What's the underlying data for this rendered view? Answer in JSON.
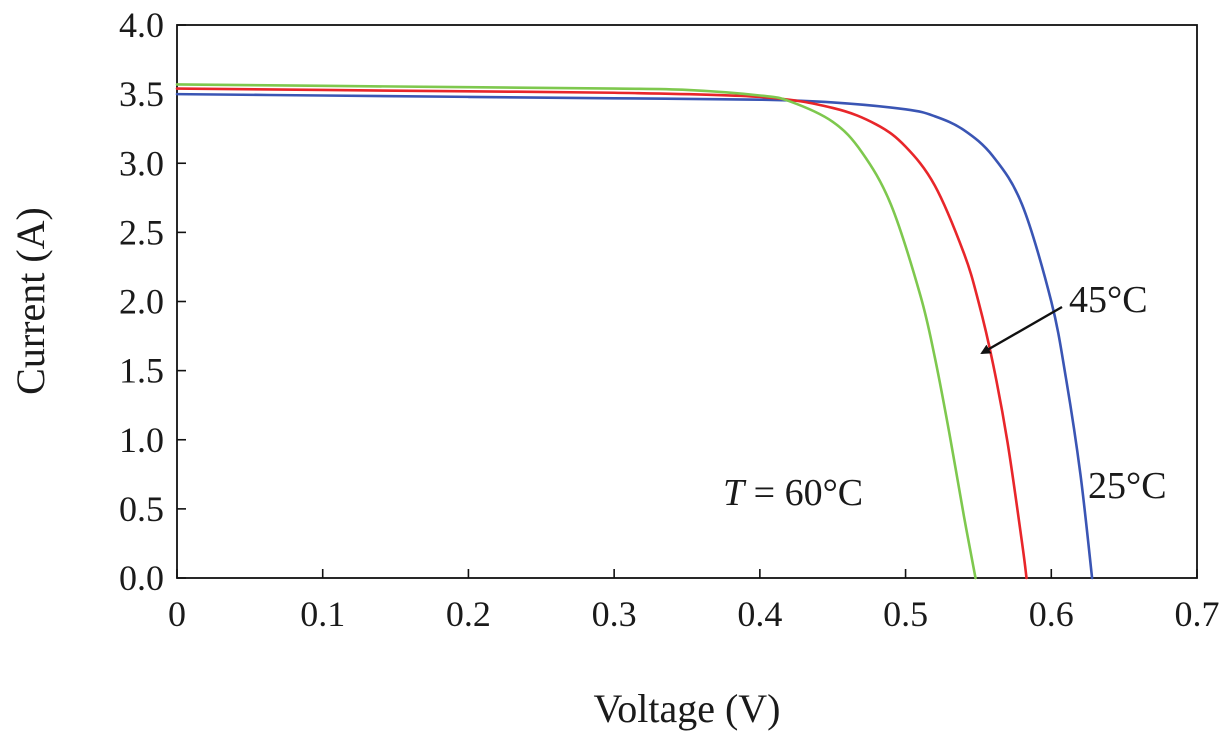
{
  "chart_data": {
    "type": "line",
    "xlabel": "Voltage (V)",
    "ylabel": "Current (A)",
    "xlim": [
      0,
      0.7
    ],
    "ylim": [
      0,
      4.0
    ],
    "x_ticks": [
      "0",
      "0.1",
      "0.2",
      "0.3",
      "0.4",
      "0.5",
      "0.6",
      "0.7"
    ],
    "y_ticks": [
      "0.0",
      "0.5",
      "1.0",
      "1.5",
      "2.0",
      "2.5",
      "3.0",
      "3.5",
      "4.0"
    ],
    "grid": false,
    "series": [
      {
        "color": "#3a55b4",
        "x": [
          0,
          0.1,
          0.2,
          0.3,
          0.4,
          0.45,
          0.5,
          0.52,
          0.54,
          0.56,
          0.58,
          0.6,
          0.61,
          0.62,
          0.628
        ],
        "y": [
          3.5,
          3.49,
          3.48,
          3.47,
          3.46,
          3.44,
          3.39,
          3.34,
          3.24,
          3.05,
          2.7,
          2.0,
          1.45,
          0.75,
          0
        ]
      },
      {
        "color": "#e8262a",
        "x": [
          0,
          0.1,
          0.2,
          0.3,
          0.4,
          0.45,
          0.48,
          0.5,
          0.52,
          0.54,
          0.55,
          0.56,
          0.57,
          0.58,
          0.583
        ],
        "y": [
          3.54,
          3.53,
          3.52,
          3.51,
          3.48,
          3.4,
          3.28,
          3.12,
          2.84,
          2.35,
          2.0,
          1.55,
          0.98,
          0.25,
          0
        ]
      },
      {
        "color": "#7ec84e",
        "x": [
          0,
          0.1,
          0.2,
          0.3,
          0.35,
          0.4,
          0.42,
          0.45,
          0.47,
          0.49,
          0.51,
          0.52,
          0.53,
          0.54,
          0.548
        ],
        "y": [
          3.57,
          3.56,
          3.55,
          3.54,
          3.53,
          3.49,
          3.45,
          3.3,
          3.08,
          2.7,
          2.05,
          1.6,
          1.05,
          0.45,
          0
        ]
      }
    ],
    "annotations": [
      {
        "label": "25°C",
        "x": 0.628,
        "y": 0.65
      },
      {
        "label": "45°C",
        "x": 0.615,
        "y": 1.95,
        "arrow_to": [
          0.553,
          1.62
        ]
      },
      {
        "prefix": "T",
        "label": " = 60°C",
        "x": 0.375,
        "y": 0.63
      }
    ]
  }
}
